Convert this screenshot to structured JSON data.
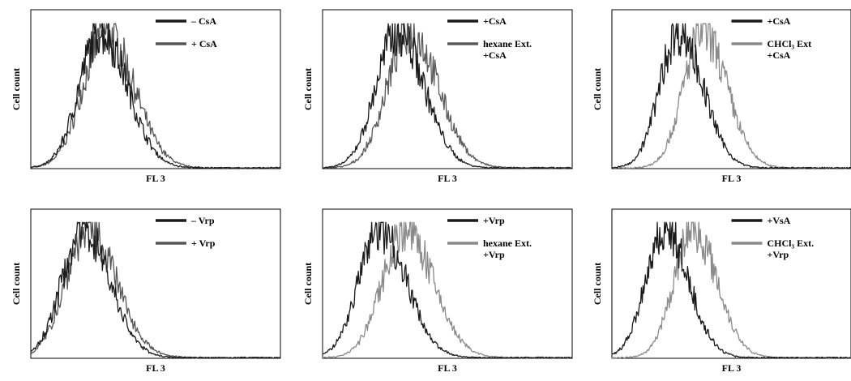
{
  "chart_data": [
    {
      "type": "line",
      "xlabel": "FL 3",
      "ylabel": "Cell count",
      "legend_position": "top-right",
      "series": [
        {
          "name": "– CsA",
          "color": "#1a1a1a",
          "peak": 0.28,
          "width": 0.085
        },
        {
          "name": "+ CsA",
          "color": "#555555",
          "peak": 0.3,
          "width": 0.09
        }
      ]
    },
    {
      "type": "line",
      "xlabel": "FL 3",
      "ylabel": "Cell count",
      "legend_position": "top-right",
      "series": [
        {
          "name": "+CsA",
          "color": "#1a1a1a",
          "peak": 0.3,
          "width": 0.085
        },
        {
          "name": "hexane Ext.\n+CsA",
          "color": "#5a5a5a",
          "peak": 0.35,
          "width": 0.09
        }
      ]
    },
    {
      "type": "line",
      "xlabel": "FL 3",
      "ylabel": "Cell count",
      "legend_position": "top-right",
      "series": [
        {
          "name": "+CsA",
          "color": "#1a1a1a",
          "peak": 0.28,
          "width": 0.08
        },
        {
          "name": "CHCl₃ Ext\n+CsA",
          "color": "#8a8a8a",
          "peak": 0.38,
          "width": 0.08
        }
      ]
    },
    {
      "type": "line",
      "xlabel": "FL 3",
      "ylabel": "Cell count",
      "legend_position": "top-right",
      "series": [
        {
          "name": "– Vrp",
          "color": "#1a1a1a",
          "peak": 0.21,
          "width": 0.085
        },
        {
          "name": "+ Vrp",
          "color": "#555555",
          "peak": 0.23,
          "width": 0.09
        }
      ]
    },
    {
      "type": "line",
      "xlabel": "FL 3",
      "ylabel": "Cell count",
      "legend_position": "top-right",
      "series": [
        {
          "name": "+Vrp",
          "color": "#1a1a1a",
          "peak": 0.23,
          "width": 0.085
        },
        {
          "name": "hexane Ext.\n+Vrp",
          "color": "#8a8a8a",
          "peak": 0.33,
          "width": 0.09
        }
      ]
    },
    {
      "type": "line",
      "xlabel": "FL 3",
      "ylabel": "Cell count",
      "legend_position": "top-right",
      "series": [
        {
          "name": "+VsA",
          "color": "#1a1a1a",
          "peak": 0.22,
          "width": 0.08
        },
        {
          "name": "CHCl₃ Ext.\n+Vrp",
          "color": "#8a8a8a",
          "peak": 0.34,
          "width": 0.08
        }
      ]
    }
  ]
}
